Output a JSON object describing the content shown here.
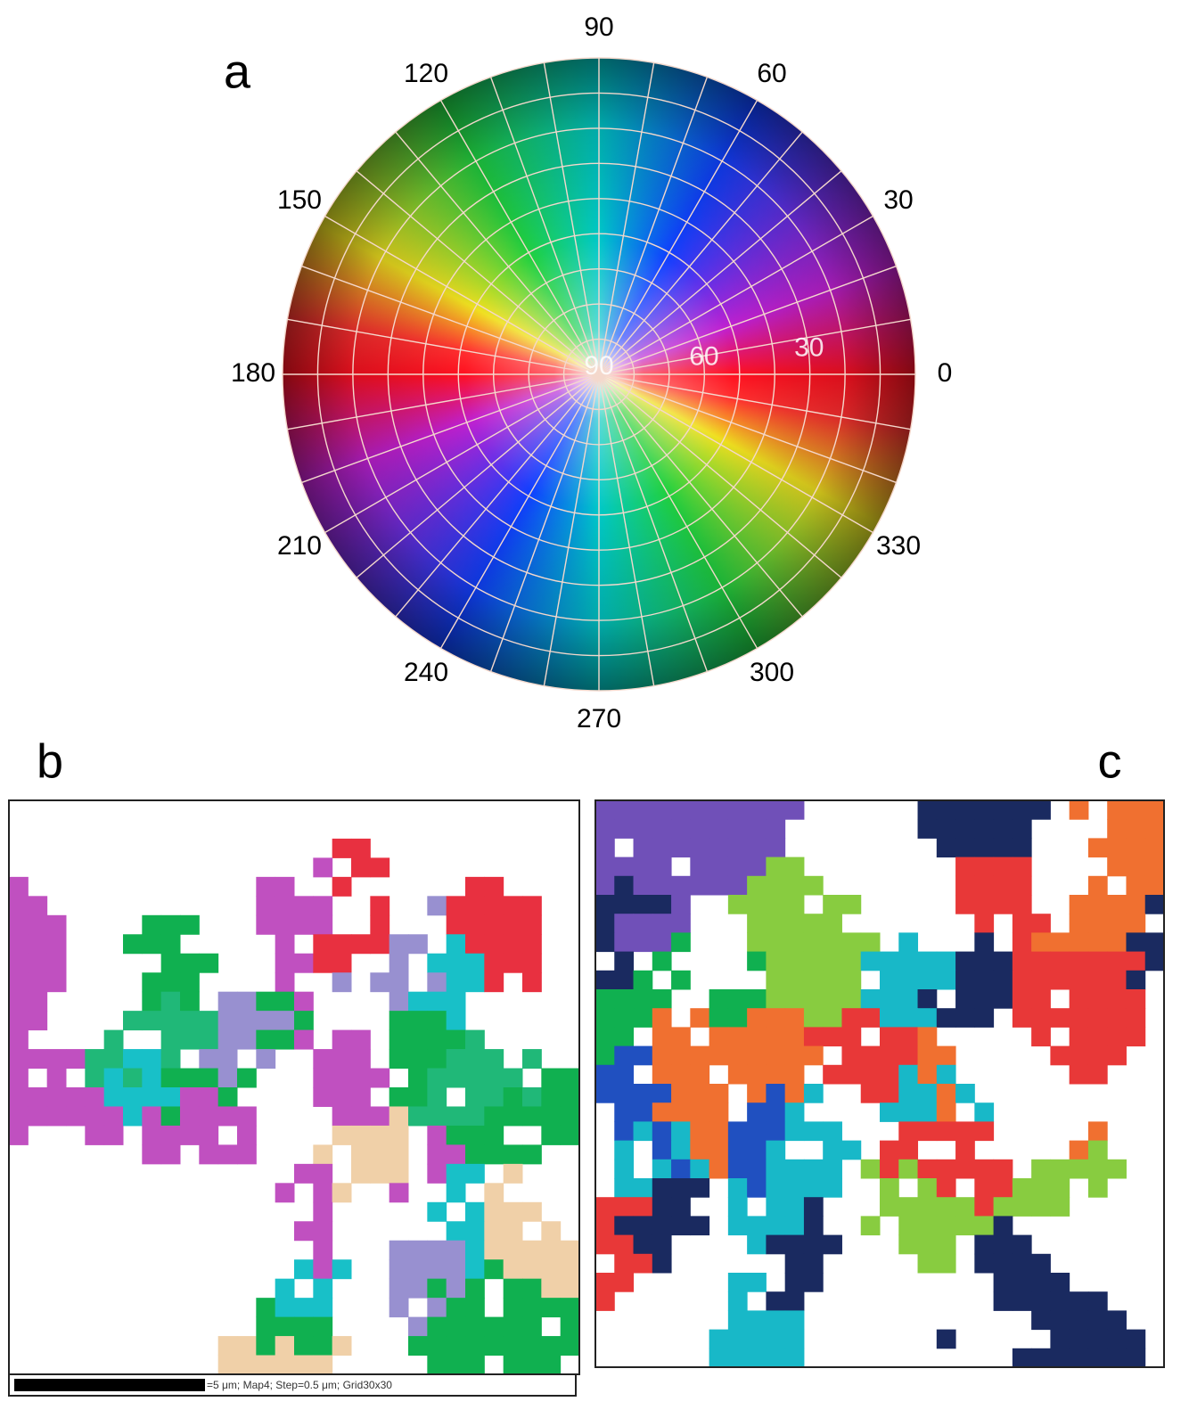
{
  "panels": [
    {
      "label": "a",
      "azimuth_labels": [
        0,
        30,
        60,
        90,
        120,
        150,
        180,
        210,
        240,
        270,
        300,
        330
      ],
      "dip_labels": [
        90,
        60,
        30
      ]
    },
    {
      "label": "b",
      "scale_bar_text": "=5  μm; Map4; Step=0.5 μm; Grid30x30"
    },
    {
      "label": "c"
    }
  ]
}
